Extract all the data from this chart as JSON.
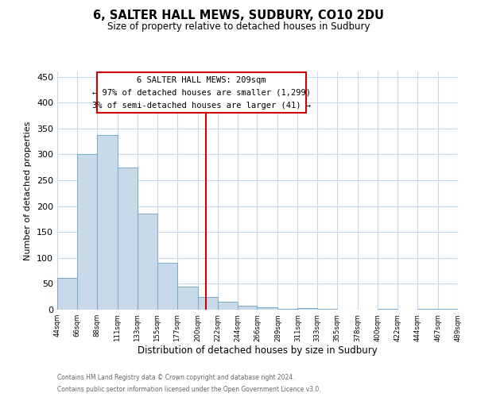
{
  "title": "6, SALTER HALL MEWS, SUDBURY, CO10 2DU",
  "subtitle": "Size of property relative to detached houses in Sudbury",
  "xlabel": "Distribution of detached houses by size in Sudbury",
  "ylabel": "Number of detached properties",
  "bar_color": "#c8daea",
  "bar_edge_color": "#7aaac8",
  "grid_color": "#c8daea",
  "vline_x": 209,
  "vline_color": "#cc0000",
  "annotation_title": "6 SALTER HALL MEWS: 209sqm",
  "annotation_line1": "← 97% of detached houses are smaller (1,299)",
  "annotation_line2": "3% of semi-detached houses are larger (41) →",
  "annotation_box_color": "#cc0000",
  "bin_edges": [
    44,
    66,
    88,
    111,
    133,
    155,
    177,
    200,
    222,
    244,
    266,
    289,
    311,
    333,
    355,
    378,
    400,
    422,
    444,
    467,
    489
  ],
  "bar_heights": [
    62,
    301,
    338,
    274,
    185,
    90,
    45,
    25,
    15,
    7,
    4,
    2,
    3,
    2,
    0,
    0,
    2,
    0,
    2,
    2
  ],
  "ylim": [
    0,
    460
  ],
  "yticks": [
    0,
    50,
    100,
    150,
    200,
    250,
    300,
    350,
    400,
    450
  ],
  "footnote1": "Contains HM Land Registry data © Crown copyright and database right 2024.",
  "footnote2": "Contains public sector information licensed under the Open Government Licence v3.0."
}
